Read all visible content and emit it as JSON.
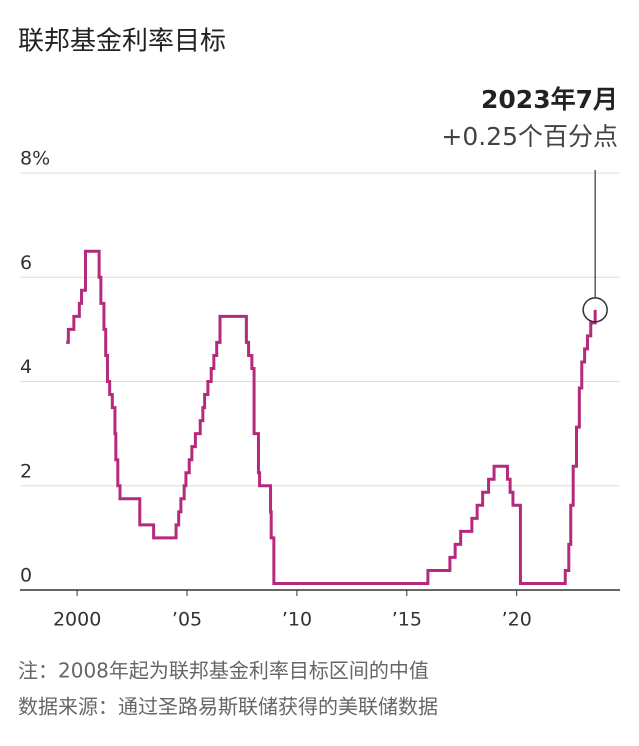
{
  "chart_data": {
    "type": "step-line",
    "title": "联邦基金利率目标",
    "annotation_title": "2023年7月",
    "annotation_text": "+0.25个百分点",
    "note": "注：2008年起为联邦基金利率目标区间的中值",
    "source": "数据来源：通过圣路易斯联储获得的美联储数据",
    "color": "#b52a7c",
    "grid": true,
    "x": [
      1999.5,
      1999.6,
      1999.85,
      2000.1,
      2000.2,
      2000.38,
      2001.0,
      2001.08,
      2001.22,
      2001.3,
      2001.38,
      2001.48,
      2001.6,
      2001.72,
      2001.76,
      2001.85,
      2001.95,
      2002.85,
      2003.48,
      2004.5,
      2004.62,
      2004.72,
      2004.87,
      2004.95,
      2005.1,
      2005.22,
      2005.38,
      2005.6,
      2005.72,
      2005.8,
      2005.95,
      2006.1,
      2006.22,
      2006.35,
      2006.5,
      2007.7,
      2007.8,
      2007.95,
      2008.05,
      2008.25,
      2008.3,
      2008.8,
      2008.83,
      2008.95,
      2015.96,
      2016.96,
      2017.2,
      2017.45,
      2017.96,
      2018.2,
      2018.45,
      2018.72,
      2018.97,
      2019.58,
      2019.7,
      2019.83,
      2020.17,
      2022.21,
      2022.37,
      2022.46,
      2022.57,
      2022.72,
      2022.85,
      2022.96,
      2023.09,
      2023.22,
      2023.37,
      2023.57
    ],
    "values": [
      4.75,
      5.0,
      5.25,
      5.5,
      5.75,
      6.5,
      6.0,
      5.5,
      5.0,
      4.5,
      4.0,
      3.75,
      3.5,
      3.0,
      2.5,
      2.0,
      1.75,
      1.25,
      1.0,
      1.25,
      1.5,
      1.75,
      2.0,
      2.25,
      2.5,
      2.75,
      3.0,
      3.25,
      3.5,
      3.75,
      4.0,
      4.25,
      4.5,
      4.75,
      5.25,
      4.75,
      4.5,
      4.25,
      3.0,
      2.25,
      2.0,
      1.5,
      1.0,
      0.125,
      0.375,
      0.625,
      0.875,
      1.125,
      1.375,
      1.625,
      1.875,
      2.125,
      2.375,
      2.125,
      1.875,
      1.625,
      0.125,
      0.375,
      0.875,
      1.625,
      2.375,
      3.125,
      3.875,
      4.375,
      4.625,
      4.875,
      5.125,
      5.375
    ],
    "xlim": [
      1997.4,
      2024.7
    ],
    "ylim": [
      0,
      8
    ],
    "xticks": [
      2000,
      {
        "value": 2005,
        "label": "’05"
      },
      {
        "value": 2010,
        "label": "’10"
      },
      {
        "value": 2015,
        "label": "’15"
      },
      {
        "value": 2020,
        "label": "’20"
      }
    ],
    "yticks": [
      0,
      2,
      4,
      6,
      {
        "value": 8,
        "label": "8%"
      }
    ]
  }
}
